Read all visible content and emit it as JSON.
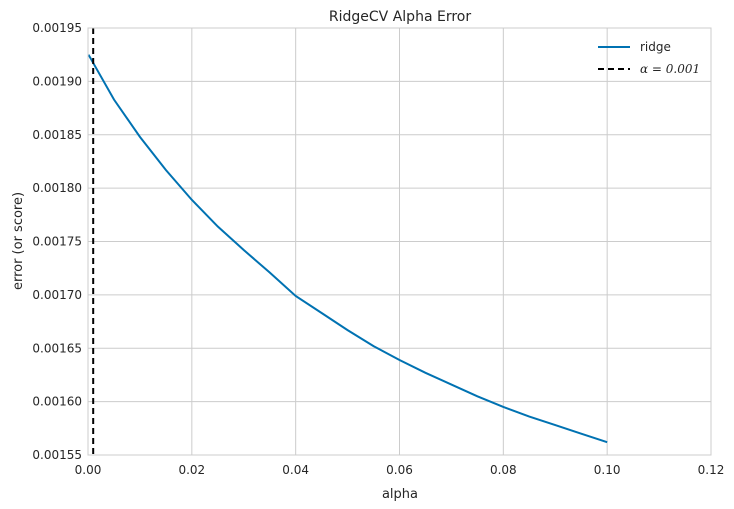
{
  "chart_data": {
    "type": "line",
    "title": "RidgeCV Alpha Error",
    "xlabel": "alpha",
    "ylabel": "error (or score)",
    "xlim": [
      0.0,
      0.12
    ],
    "ylim": [
      0.00155,
      0.00195
    ],
    "grid": true,
    "legend_position": "top-right",
    "x_ticks": [
      "0.00",
      "0.02",
      "0.04",
      "0.06",
      "0.08",
      "0.10",
      "0.12"
    ],
    "y_ticks": [
      "0.00155",
      "0.00160",
      "0.00165",
      "0.00170",
      "0.00175",
      "0.00180",
      "0.00185",
      "0.00190",
      "0.00195"
    ],
    "series": [
      {
        "name": "ridge",
        "color": "#0072b2",
        "style": "solid",
        "x": [
          0.0001,
          0.005,
          0.01,
          0.015,
          0.02,
          0.025,
          0.03,
          0.035,
          0.04,
          0.045,
          0.05,
          0.055,
          0.06,
          0.065,
          0.07,
          0.075,
          0.08,
          0.085,
          0.09,
          0.095,
          0.1
        ],
        "y": [
          0.001925,
          0.001883,
          0.001848,
          0.001817,
          0.001789,
          0.001764,
          0.001742,
          0.001721,
          0.001699,
          0.001683,
          0.001667,
          0.001652,
          0.001639,
          0.001627,
          0.001616,
          0.001605,
          0.001595,
          0.001586,
          0.001578,
          0.00157,
          0.001562
        ]
      }
    ],
    "annotations": [
      {
        "type": "vline",
        "x": 0.001,
        "label": "α = 0.001",
        "color": "#000000",
        "style": "dashed"
      }
    ]
  }
}
